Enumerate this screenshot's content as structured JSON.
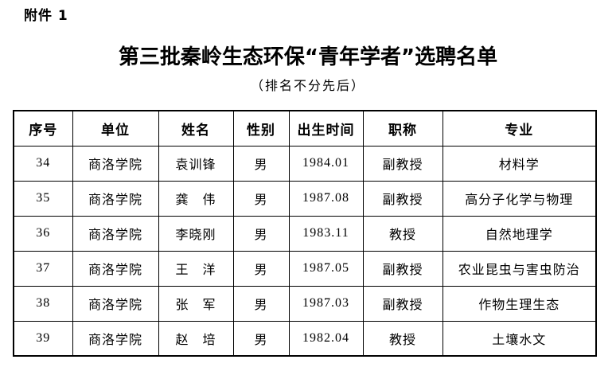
{
  "page": {
    "attachment_label": "附件 1",
    "title": "第三批秦岭生态环保“青年学者”选聘名单",
    "subtitle": "（排名不分先后）"
  },
  "table": {
    "headers": [
      "序号",
      "单位",
      "姓名",
      "性别",
      "出生时间",
      "职称",
      "专业"
    ],
    "rows": [
      [
        "34",
        "商洛学院",
        "袁训锋",
        "男",
        "1984.01",
        "副教授",
        "材料学"
      ],
      [
        "35",
        "商洛学院",
        "龚　伟",
        "男",
        "1987.08",
        "副教授",
        "高分子化学与物理"
      ],
      [
        "36",
        "商洛学院",
        "李晓刚",
        "男",
        "1983.11",
        "教授",
        "自然地理学"
      ],
      [
        "37",
        "商洛学院",
        "王　洋",
        "男",
        "1987.05",
        "副教授",
        "农业昆虫与害虫防治"
      ],
      [
        "38",
        "商洛学院",
        "张　军",
        "男",
        "1987.03",
        "副教授",
        "作物生理生态"
      ],
      [
        "39",
        "商洛学院",
        "赵　培",
        "男",
        "1982.04",
        "教授",
        "土壤水文"
      ]
    ]
  }
}
